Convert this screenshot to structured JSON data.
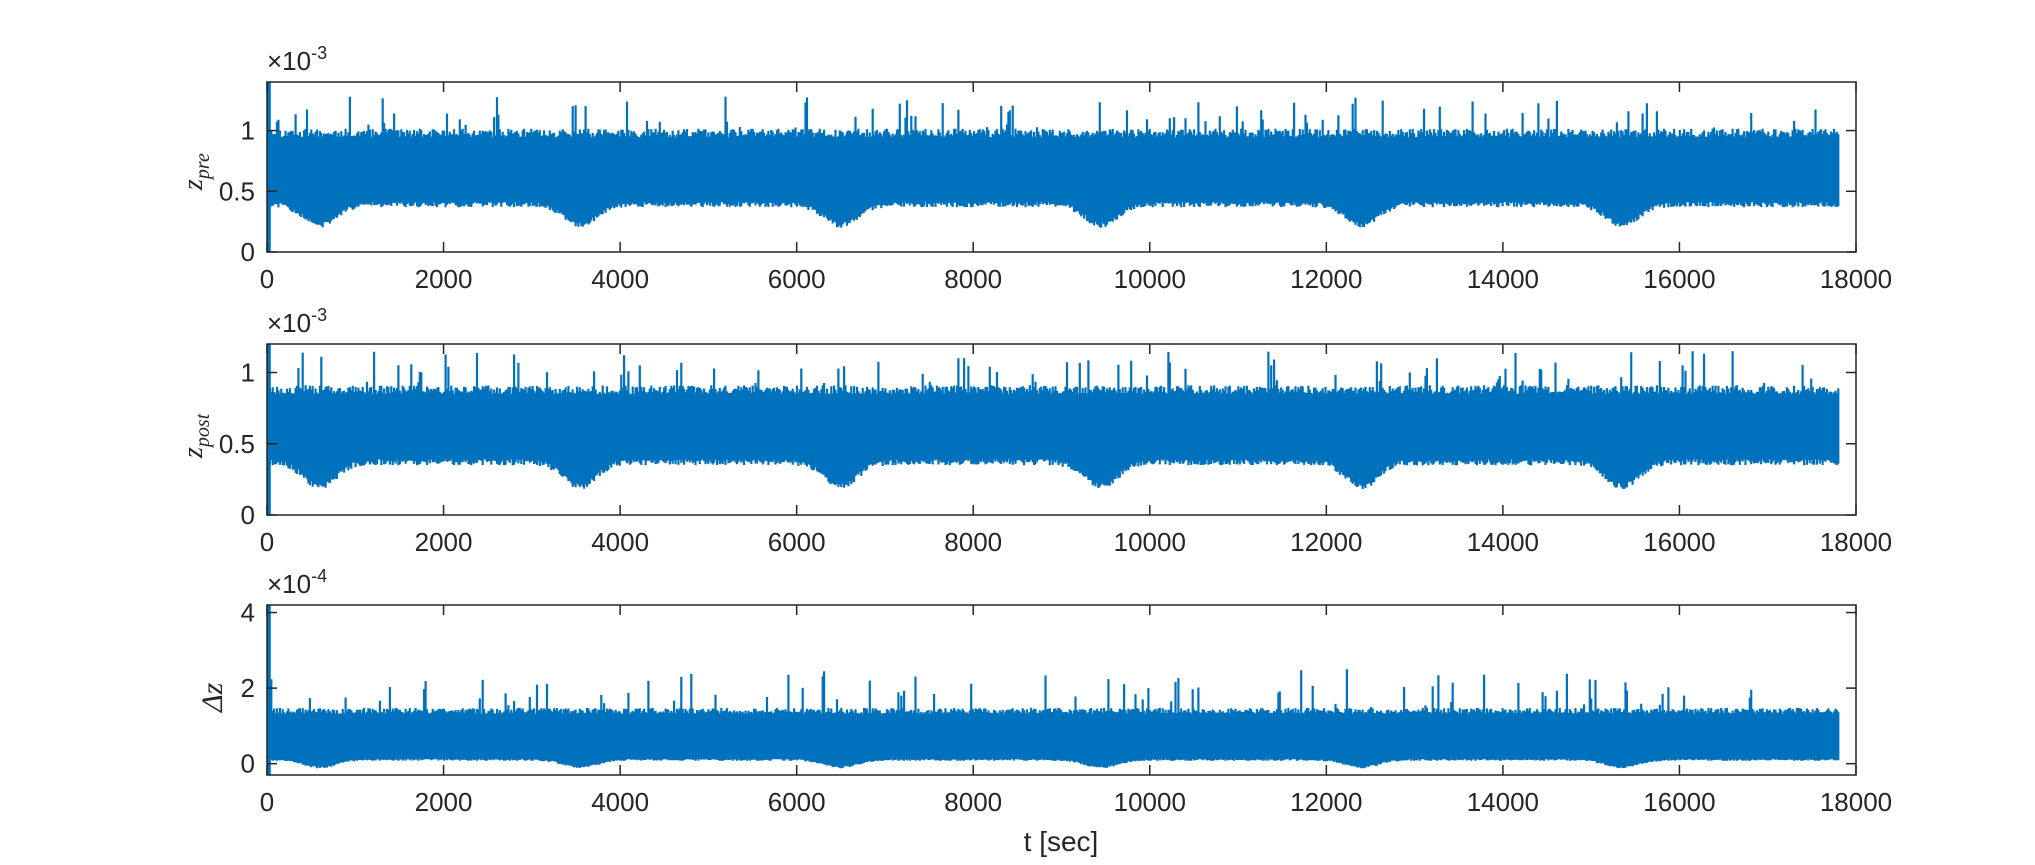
{
  "chart_data": [
    {
      "type": "line",
      "ylabel_main": "z",
      "ylabel_sub": "pre",
      "exponent_label": "×10",
      "exponent_power": "-3",
      "xlim": [
        0,
        18000
      ],
      "ylim": [
        0,
        0.0014
      ],
      "xticks": [
        0,
        2000,
        4000,
        6000,
        8000,
        10000,
        12000,
        14000,
        16000,
        18000
      ],
      "yticks": [
        0,
        0.5,
        1
      ],
      "ytick_scale": 0.001,
      "color": "#0072BD",
      "t_end": 17800,
      "envelope": {
        "upper_base": 0.00098,
        "upper_spike_max": 0.00128,
        "lower_base": 0.00039,
        "lower_dip": 0.00022,
        "dip_period": 2950,
        "dip_first": 600,
        "initial_spike": 0.0014
      },
      "xlabel": ""
    },
    {
      "type": "line",
      "ylabel_main": "z",
      "ylabel_sub": "post",
      "exponent_label": "×10",
      "exponent_power": "-3",
      "xlim": [
        0,
        18000
      ],
      "ylim": [
        0,
        0.0012
      ],
      "xticks": [
        0,
        2000,
        4000,
        6000,
        8000,
        10000,
        12000,
        14000,
        16000,
        18000
      ],
      "yticks": [
        0,
        0.5,
        1
      ],
      "ytick_scale": 0.001,
      "color": "#0072BD",
      "t_end": 17800,
      "envelope": {
        "upper_base": 0.00088,
        "upper_spike_max": 0.00115,
        "lower_base": 0.00037,
        "lower_dip": 0.0002,
        "dip_period": 2950,
        "dip_first": 600,
        "initial_spike": 0.0012
      },
      "xlabel": ""
    },
    {
      "type": "line",
      "ylabel_main": "Δz",
      "ylabel_sub": "",
      "exponent_label": "×10",
      "exponent_power": "-4",
      "xlim": [
        0,
        18000
      ],
      "ylim": [
        -3e-05,
        0.00042
      ],
      "xticks": [
        0,
        2000,
        4000,
        6000,
        8000,
        10000,
        12000,
        14000,
        16000,
        18000
      ],
      "yticks": [
        0,
        2,
        4
      ],
      "ytick_scale": 0.0001,
      "color": "#0072BD",
      "t_end": 17800,
      "envelope": {
        "upper_base": 0.00014,
        "upper_spike_max": 0.00025,
        "lower_base": 1e-05,
        "lower_dip": -1e-05,
        "dip_period": 2950,
        "dip_first": 600,
        "initial_spike": 0.00042
      },
      "xlabel": "t [sec]"
    }
  ]
}
